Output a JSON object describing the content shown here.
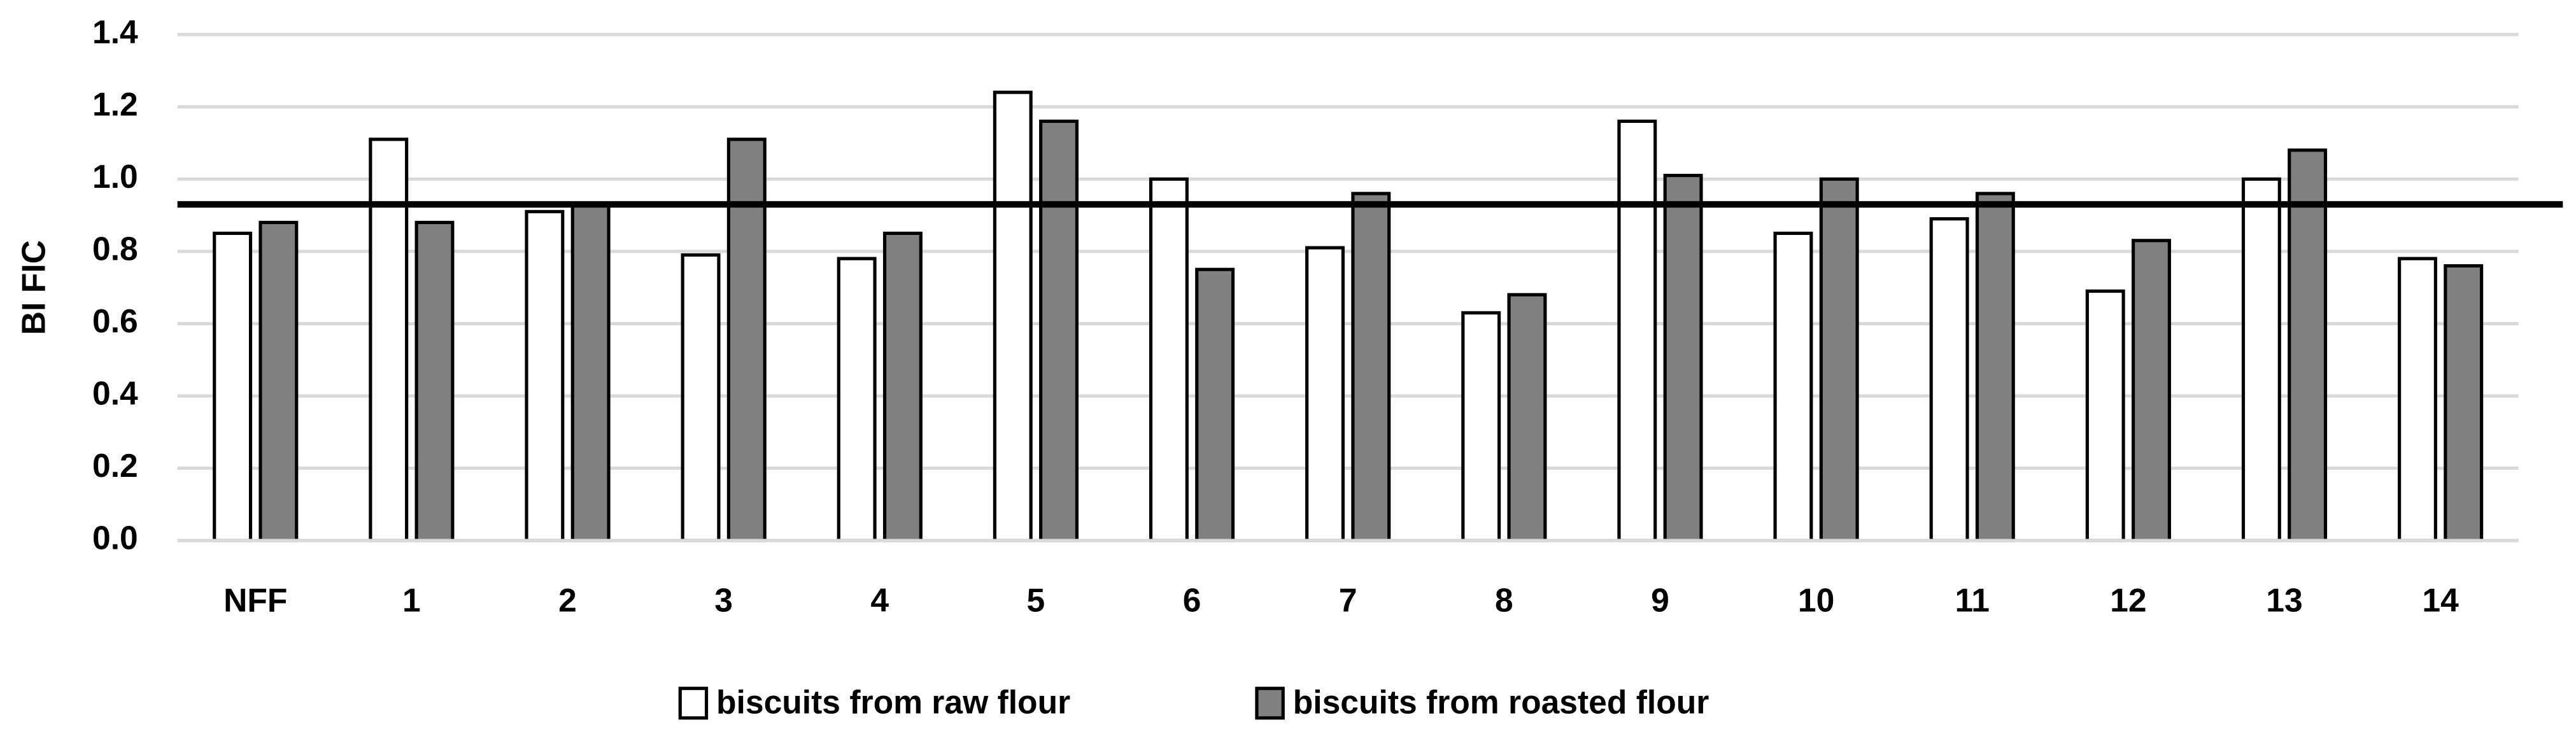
{
  "chart_data": {
    "type": "bar",
    "y_label": "BI FIC",
    "categories": [
      "NFF",
      "1",
      "2",
      "3",
      "4",
      "5",
      "6",
      "7",
      "8",
      "9",
      "10",
      "11",
      "12",
      "13",
      "14"
    ],
    "series": [
      {
        "name": "biscuits from raw flour",
        "color": "#ffffff",
        "values": [
          0.85,
          1.11,
          0.91,
          0.79,
          0.78,
          1.24,
          1.0,
          0.81,
          0.63,
          1.16,
          0.85,
          0.89,
          0.69,
          1.0,
          0.78
        ]
      },
      {
        "name": "biscuits from roasted flour",
        "color": "#808080",
        "values": [
          0.88,
          0.88,
          0.93,
          1.11,
          0.85,
          1.16,
          0.75,
          0.96,
          0.68,
          1.01,
          1.0,
          0.96,
          0.83,
          1.08,
          0.76
        ]
      }
    ],
    "reference_line": 0.93,
    "ylim": [
      0,
      1.4
    ],
    "yticks": [
      {
        "value": 0,
        "label": "0.0"
      },
      0.2,
      0.4,
      0.6,
      0.8,
      {
        "value": 1,
        "label": "1.0"
      },
      1.2,
      1.4
    ],
    "grid": true,
    "legend": "bottom"
  }
}
